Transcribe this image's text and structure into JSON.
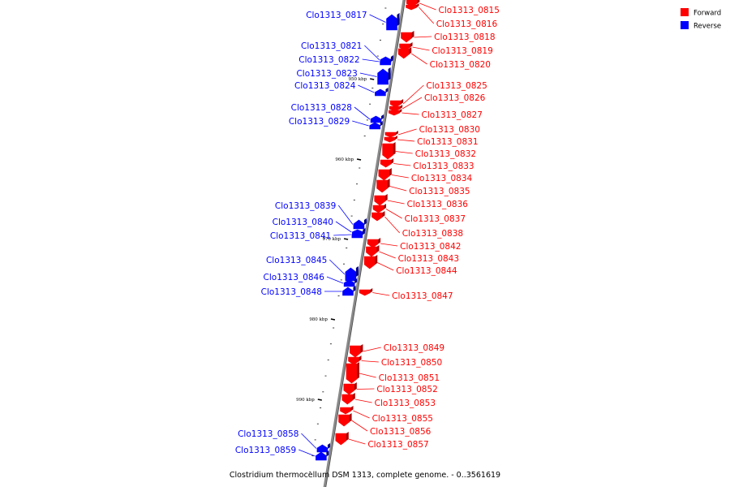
{
  "caption": "Clostridium thermocellum DSM 1313, complete genome. - 0..3561619",
  "legend": [
    {
      "label": "Forward",
      "color": "#ff0000"
    },
    {
      "label": "Reverse",
      "color": "#0000ff"
    }
  ],
  "colors": {
    "forward": "#ff0000",
    "reverse": "#0000ff",
    "backbone": "#8a8a8a"
  },
  "ticks": [
    "950 kbp",
    "960 kbp",
    "970 kbp",
    "980 kbp",
    "990 kbp"
  ],
  "forward_genes": [
    "Clo1313_0815",
    "Clo1313_0816",
    "Clo1313_0818",
    "Clo1313_0819",
    "Clo1313_0820",
    "Clo1313_0825",
    "Clo1313_0826",
    "Clo1313_0827",
    "Clo1313_0830",
    "Clo1313_0831",
    "Clo1313_0832",
    "Clo1313_0833",
    "Clo1313_0834",
    "Clo1313_0835",
    "Clo1313_0836",
    "Clo1313_0837",
    "Clo1313_0838",
    "Clo1313_0842",
    "Clo1313_0843",
    "Clo1313_0844",
    "Clo1313_0847",
    "Clo1313_0849",
    "Clo1313_0850",
    "Clo1313_0851",
    "Clo1313_0852",
    "Clo1313_0853",
    "Clo1313_0855",
    "Clo1313_0856",
    "Clo1313_0857"
  ],
  "reverse_genes": [
    "Clo1313_0817",
    "Clo1313_0821",
    "Clo1313_0822",
    "Clo1313_0823",
    "Clo1313_0824",
    "Clo1313_0828",
    "Clo1313_0829",
    "Clo1313_0839",
    "Clo1313_0840",
    "Clo1313_0841",
    "Clo1313_0845",
    "Clo1313_0846",
    "Clo1313_0848",
    "Clo1313_0858",
    "Clo1313_0859"
  ]
}
